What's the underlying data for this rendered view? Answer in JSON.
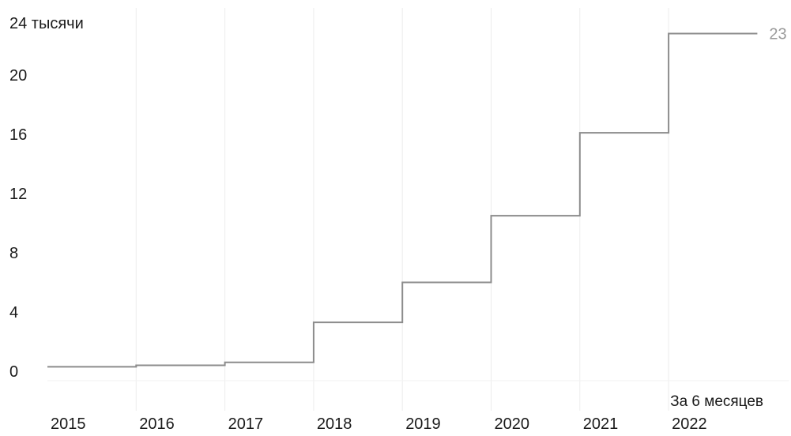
{
  "chart_data": {
    "type": "line",
    "style": "step",
    "ylabel": "24 тысячи",
    "ylim": [
      0,
      24
    ],
    "y_ticks": [
      "0",
      "4",
      "8",
      "12",
      "16",
      "20"
    ],
    "categories": [
      "2015",
      "2016",
      "2017",
      "2018",
      "2019",
      "2020",
      "2021",
      "2022"
    ],
    "values": [
      0.3,
      0.4,
      0.6,
      3.3,
      6.0,
      10.5,
      16.1,
      22.8
    ],
    "end_label": "23",
    "last_category_note": "За 6 месяцев",
    "line_color": "#8c8c8c",
    "grid": "vertical"
  }
}
